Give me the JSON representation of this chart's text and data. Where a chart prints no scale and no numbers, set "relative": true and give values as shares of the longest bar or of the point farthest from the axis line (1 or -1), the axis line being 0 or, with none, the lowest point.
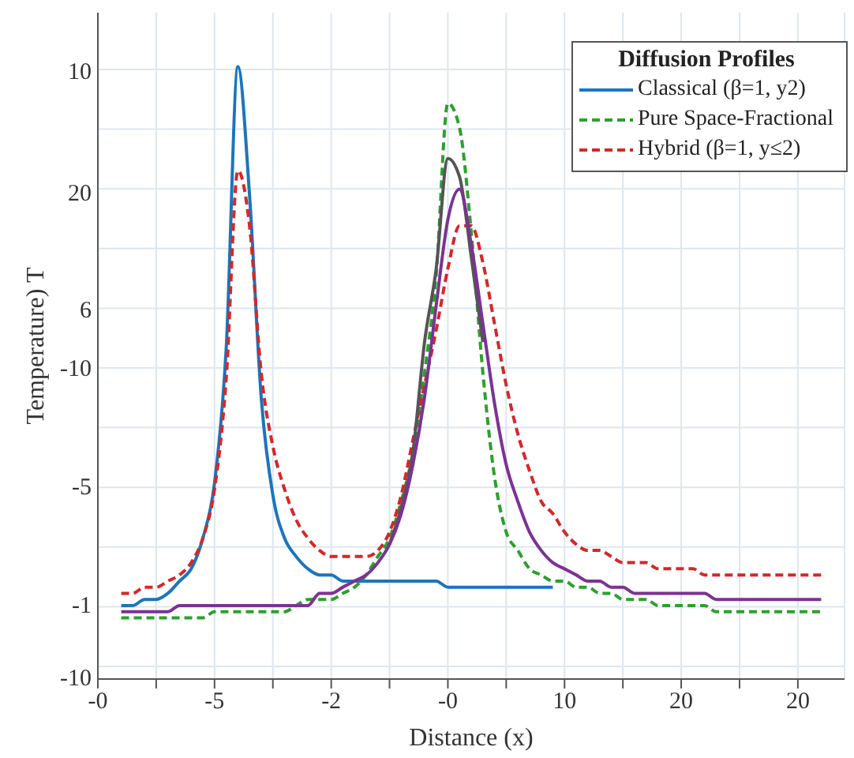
{
  "chart_data": {
    "type": "line",
    "relative": true,
    "xlabel": "Distance (x)",
    "ylabel": "Temperature) T",
    "legend_title": "Diffusion Profiles",
    "legend": "top right",
    "grid": true,
    "annotations": [
      "10",
      "20",
      "6",
      "-10",
      "-5",
      "-1",
      "-10"
    ],
    "categories": [
      "-0",
      null,
      null,
      null,
      null,
      null,
      null,
      null,
      null,
      null,
      "-5",
      null,
      null,
      null,
      null,
      null,
      null,
      null,
      null,
      null,
      "-2",
      null,
      null,
      null,
      null,
      null,
      null,
      null,
      null,
      null,
      "-0",
      null,
      null,
      null,
      null,
      null,
      null,
      null,
      null,
      null,
      "10",
      null,
      null,
      null,
      null,
      null,
      null,
      null,
      null,
      null,
      "20",
      null,
      null,
      null,
      null,
      null,
      null,
      null,
      null,
      null,
      "20",
      null,
      null,
      null,
      null
    ],
    "series": [
      {
        "name": "Classical (β=1, y2)",
        "color": "#1b75bc",
        "line_style": "solid",
        "values": [
          null,
          null,
          0.12,
          0.12,
          0.13,
          0.13,
          0.14,
          0.16,
          0.18,
          0.23,
          0.32,
          0.54,
          1.0,
          0.79,
          0.46,
          0.3,
          0.23,
          0.2,
          0.18,
          0.17,
          0.17,
          0.16,
          0.16,
          0.16,
          0.16,
          0.16,
          0.16,
          0.16,
          0.16,
          0.16,
          0.15,
          0.15,
          0.15,
          0.15,
          0.15,
          0.15,
          0.15,
          0.15,
          0.15,
          0.15,
          null,
          null,
          null,
          null,
          null,
          null,
          null,
          null,
          null,
          null,
          null,
          null,
          null,
          null,
          null,
          null,
          null,
          null,
          null,
          null,
          null,
          null,
          null,
          null,
          null
        ]
      },
      {
        "name": "Pure Space-Fractional",
        "color": "#2ca02c",
        "line_style": "dashed",
        "values": [
          null,
          null,
          0.1,
          0.1,
          0.1,
          0.1,
          0.1,
          0.1,
          0.1,
          0.1,
          0.11,
          0.11,
          0.11,
          0.11,
          0.11,
          0.11,
          0.11,
          0.12,
          0.13,
          0.13,
          0.13,
          0.14,
          0.15,
          0.17,
          0.2,
          0.23,
          0.29,
          0.37,
          0.5,
          0.66,
          0.94,
          0.9,
          0.73,
          0.5,
          0.33,
          0.24,
          0.21,
          0.18,
          0.17,
          0.16,
          0.16,
          0.15,
          0.15,
          0.14,
          0.14,
          0.13,
          0.13,
          0.13,
          0.12,
          0.12,
          0.12,
          0.12,
          0.12,
          0.11,
          0.11,
          0.11,
          0.11,
          0.11,
          0.11,
          0.11,
          0.11,
          0.11,
          0.11,
          null,
          null
        ]
      },
      {
        "name": "Hybrid (β=1, y≤2)",
        "color": "#d62728",
        "line_style": "dashed",
        "values": [
          null,
          null,
          0.14,
          0.14,
          0.15,
          0.15,
          0.16,
          0.17,
          0.19,
          0.23,
          0.31,
          0.49,
          0.83,
          0.74,
          0.5,
          0.38,
          0.31,
          0.26,
          0.23,
          0.21,
          0.2,
          0.2,
          0.2,
          0.2,
          0.21,
          0.24,
          0.3,
          0.39,
          0.48,
          0.57,
          0.67,
          0.74,
          0.74,
          0.68,
          0.58,
          0.48,
          0.4,
          0.34,
          0.29,
          0.27,
          0.24,
          0.22,
          0.21,
          0.21,
          0.2,
          0.19,
          0.19,
          0.19,
          0.18,
          0.18,
          0.18,
          0.18,
          0.17,
          0.17,
          0.17,
          0.17,
          0.17,
          0.17,
          0.17,
          0.17,
          0.17,
          0.17,
          0.17,
          null,
          null
        ]
      },
      {
        "color": "#555555",
        "line_style": "solid",
        "values": [
          null,
          null,
          null,
          null,
          null,
          null,
          null,
          null,
          null,
          null,
          null,
          null,
          null,
          null,
          null,
          null,
          null,
          null,
          null,
          null,
          null,
          null,
          null,
          null,
          null,
          0.22,
          0.28,
          0.37,
          0.55,
          0.67,
          0.85,
          0.82,
          0.69,
          0.55,
          null,
          null,
          null,
          null,
          null,
          null,
          null,
          null,
          null,
          null,
          null,
          null,
          null,
          null,
          null,
          null,
          null,
          null,
          null,
          null,
          null,
          null,
          null,
          null,
          null,
          null,
          null,
          null,
          null,
          null,
          null
        ]
      },
      {
        "color": "#7b3294",
        "line_style": "solid",
        "values": [
          null,
          null,
          0.11,
          0.11,
          0.11,
          0.11,
          0.11,
          0.12,
          0.12,
          0.12,
          0.12,
          0.12,
          0.12,
          0.12,
          0.12,
          0.12,
          0.12,
          0.12,
          0.12,
          0.14,
          0.14,
          0.15,
          0.16,
          0.17,
          0.19,
          0.22,
          0.27,
          0.35,
          0.46,
          0.61,
          0.75,
          0.8,
          0.71,
          0.58,
          0.45,
          0.35,
          0.29,
          0.24,
          0.21,
          0.19,
          0.18,
          0.17,
          0.16,
          0.16,
          0.15,
          0.15,
          0.14,
          0.14,
          0.14,
          0.14,
          0.14,
          0.14,
          0.14,
          0.13,
          0.13,
          0.13,
          0.13,
          0.13,
          0.13,
          0.13,
          0.13,
          0.13,
          0.13,
          null,
          null
        ]
      }
    ]
  }
}
